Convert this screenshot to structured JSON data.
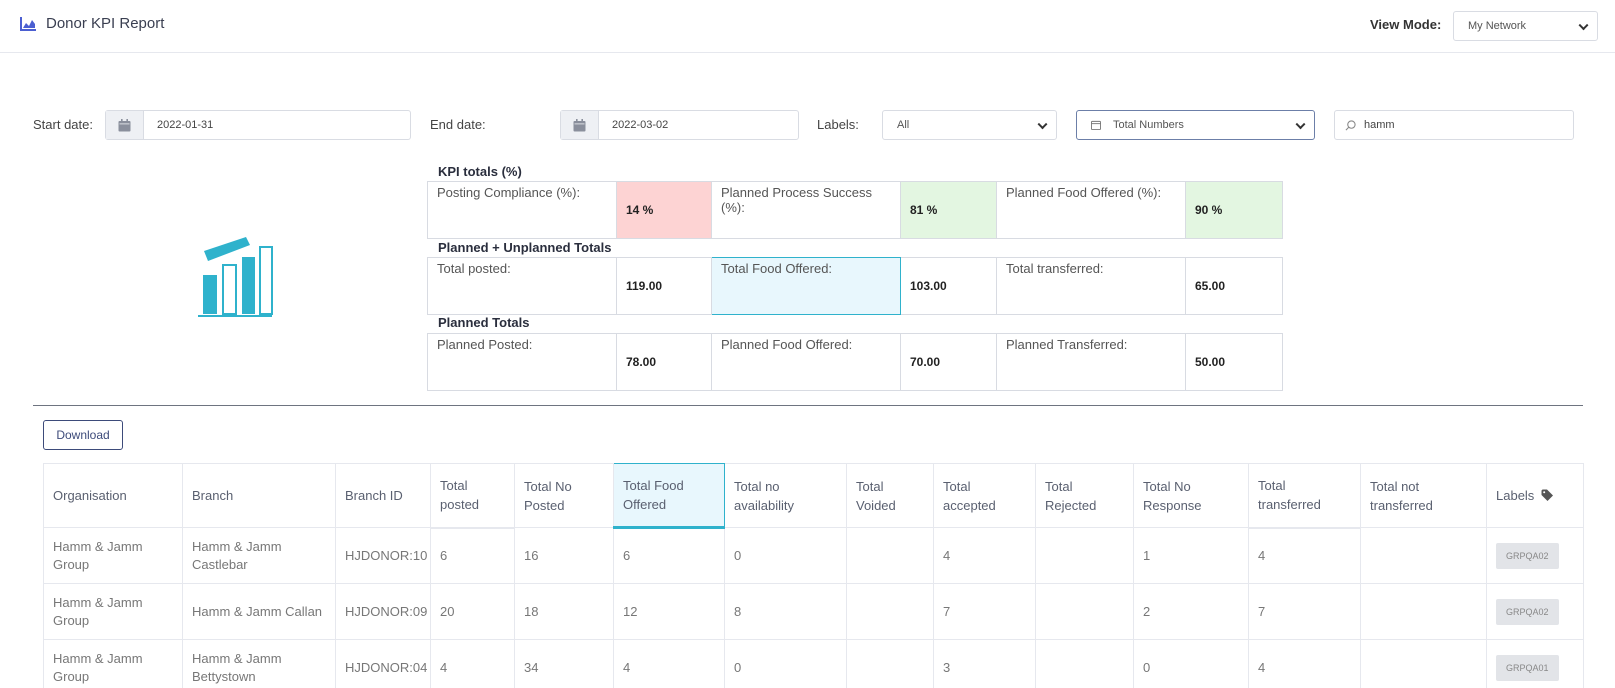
{
  "header": {
    "title": "Donor KPI Report",
    "view_mode_label": "View Mode:",
    "view_mode_value": "My Network"
  },
  "filters": {
    "start_label": "Start date:",
    "start_value": "2022-01-31",
    "end_label": "End date:",
    "end_value": "2022-03-02",
    "labels_label": "Labels:",
    "labels_value": "All",
    "metric_value": "Total Numbers",
    "search_value": "hamm"
  },
  "kpi": {
    "totals_title": "KPI totals (%)",
    "totals": [
      {
        "label": "Posting Compliance (%):",
        "value": "14 %"
      },
      {
        "label": "Planned Process Success (%):",
        "value": "81 %"
      },
      {
        "label": "Planned Food Offered (%):",
        "value": "90 %"
      }
    ],
    "combined_title": "Planned + Unplanned Totals",
    "combined": [
      {
        "label": "Total posted:",
        "value": "119.00"
      },
      {
        "label": "Total Food Offered:",
        "value": "103.00"
      },
      {
        "label": "Total transferred:",
        "value": "65.00"
      }
    ],
    "planned_title": "Planned Totals",
    "planned": [
      {
        "label": "Planned Posted:",
        "value": "78.00"
      },
      {
        "label": "Planned Food Offered:",
        "value": "70.00"
      },
      {
        "label": "Planned Transferred:",
        "value": "50.00"
      }
    ]
  },
  "download_label": "Download",
  "table": {
    "columns": [
      "Organisation",
      "Branch",
      "Branch ID",
      "Total posted",
      "Total No Posted",
      "Total Food Offered",
      "Total no availability",
      "Total Voided",
      "Total accepted",
      "Total Rejected",
      "Total No Response",
      "Total transferred",
      "Total not transferred",
      "Labels"
    ],
    "rows": [
      [
        "Hamm & Jamm Group",
        "Hamm & Jamm Castlebar",
        "HJDONOR:10",
        "6",
        "16",
        "6",
        "0",
        "",
        "4",
        "",
        "1",
        "4",
        "",
        "GRPQA02"
      ],
      [
        "Hamm & Jamm Group",
        "Hamm & Jamm Callan",
        "HJDONOR:09",
        "20",
        "18",
        "12",
        "8",
        "",
        "7",
        "",
        "2",
        "7",
        "",
        "GRPQA02"
      ],
      [
        "Hamm & Jamm Group",
        "Hamm & Jamm Bettystown",
        "HJDONOR:04",
        "4",
        "34",
        "4",
        "0",
        "",
        "3",
        "",
        "0",
        "4",
        "",
        "GRPQA01"
      ]
    ]
  },
  "colors": {
    "accent": "#2fb2cc",
    "danger_bg": "#fdd3d3",
    "success_bg": "#e3f6e1",
    "primary": "#3d4b7a"
  }
}
